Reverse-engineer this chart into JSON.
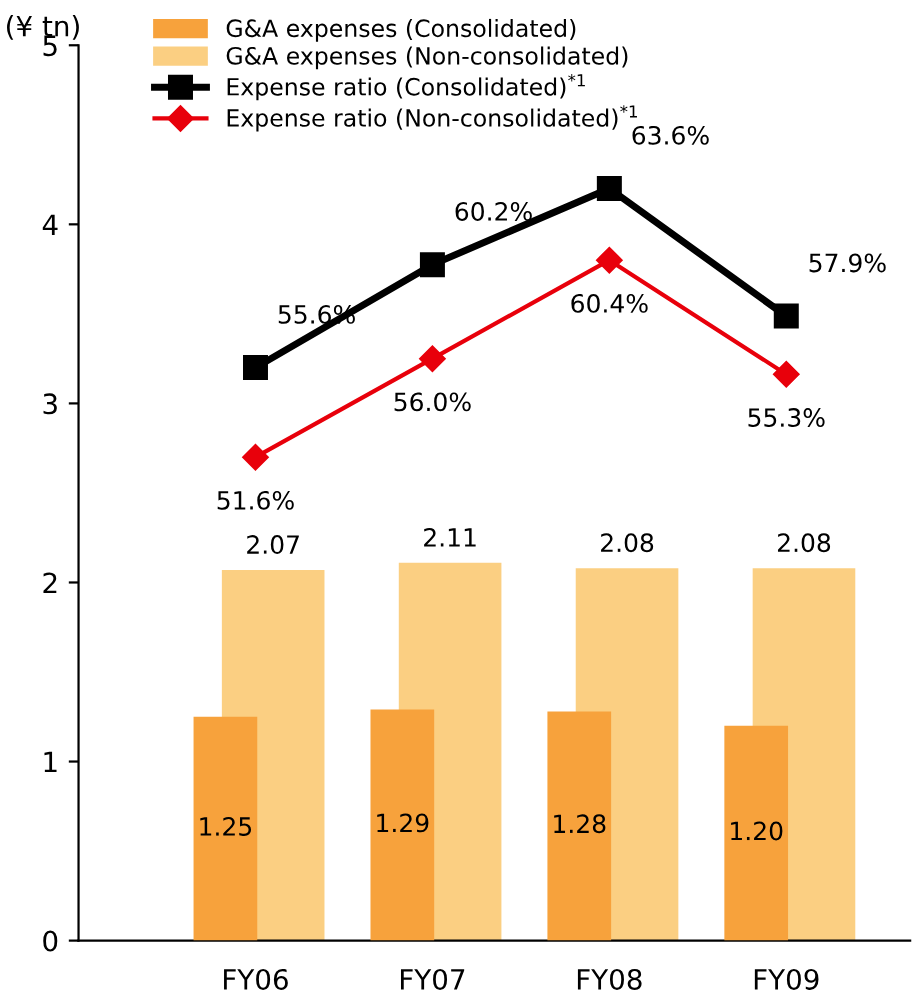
{
  "chart_data": {
    "type": "bar",
    "ylabel": "(¥ tn)",
    "categories": [
      "FY06",
      "FY07",
      "FY08",
      "FY09"
    ],
    "series": [
      {
        "name": "G&A expenses (Consolidated)",
        "type": "bar",
        "color": "#f7a23c",
        "values": [
          1.25,
          1.29,
          1.28,
          1.2
        ],
        "value_labels": [
          "1.25",
          "1.29",
          "1.28",
          "1.20"
        ]
      },
      {
        "name": "G&A expenses (Non-consolidated)",
        "type": "bar",
        "color": "#fbcf82",
        "values": [
          2.07,
          2.11,
          2.08,
          2.08
        ],
        "value_labels": [
          "2.07",
          "2.11",
          "2.08",
          "2.08"
        ]
      },
      {
        "name": "Expense ratio (Consolidated)$^{*1}$",
        "type": "line",
        "axis": "y2",
        "color": "#000000",
        "marker": "square",
        "values": [
          55.6,
          60.2,
          63.6,
          57.9
        ],
        "value_labels": [
          "55.6%",
          "60.2%",
          "63.6%",
          "57.9%"
        ]
      },
      {
        "name": "Expense ratio (Non-consolidated)$^{*1}$",
        "type": "line",
        "axis": "y2",
        "color": "#e8000b",
        "marker": "diamond",
        "values": [
          51.6,
          56.0,
          60.4,
          55.3
        ],
        "value_labels": [
          "51.6%",
          "56.0%",
          "60.4%",
          "55.3%"
        ]
      }
    ],
    "ylim": [
      0,
      5
    ],
    "yticks": [
      0,
      1,
      2,
      3,
      4,
      5
    ],
    "y2lim": [
      30,
      70
    ],
    "legend": "top left",
    "grid": false
  }
}
